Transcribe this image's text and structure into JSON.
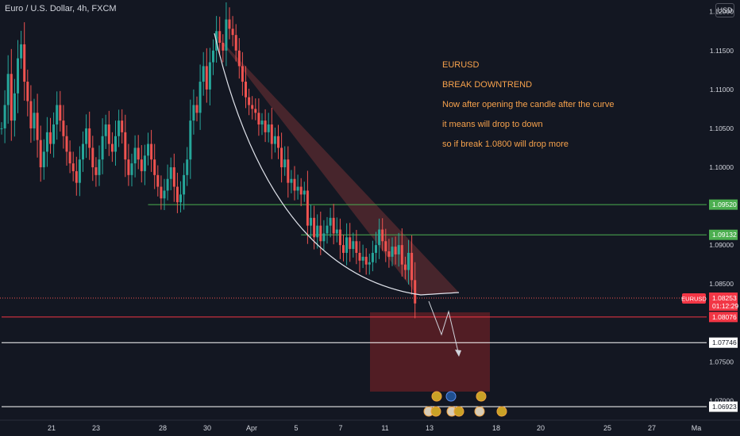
{
  "header": {
    "symbol_title": "Euro / U.S. Dollar, 4h, FXCM",
    "currency_label": "USD"
  },
  "annotation": {
    "lines": [
      "EURUSD",
      "BREAK DOWNTREND",
      "Now after opening the candle after the curve",
      "it means will drop to down",
      "so if break 1.0800 will drop more"
    ],
    "color": "#f7a24c"
  },
  "colors": {
    "background": "#131722",
    "up_candle": "#26a69a",
    "down_candle": "#ef5350",
    "axis_text": "#d1d4dc",
    "green_level": "#4caf50",
    "red_level": "#f23645"
  },
  "chart_data": {
    "type": "candlestick",
    "timeframe": "4h",
    "ylim": [
      1.0675,
      1.1215
    ],
    "y_ticks": [
      "1.12000",
      "1.11500",
      "1.11000",
      "1.10500",
      "1.10000",
      "1.09000",
      "1.08500",
      "1.07500",
      "1.07000"
    ],
    "x_ticks": [
      "21",
      "23",
      "28",
      "30",
      "Apr",
      "5",
      "7",
      "11",
      "13",
      "18",
      "20",
      "25",
      "27",
      "Ma"
    ],
    "series": [
      {
        "name": "EURUSD",
        "last": "1.08253",
        "countdown": "01:12:29"
      }
    ],
    "closes": [
      1.105,
      1.108,
      1.112,
      1.106,
      1.1095,
      1.114,
      1.1158,
      1.111,
      1.1085,
      1.105,
      1.107,
      1.1035,
      1.1,
      1.102,
      1.1045,
      1.103,
      1.1055,
      1.108,
      1.106,
      1.104,
      1.102,
      1.1005,
      1.0995,
      1.098,
      1.101,
      1.103,
      1.105,
      1.1025,
      1.1,
      1.099,
      1.101,
      1.104,
      1.1055,
      1.103,
      1.102,
      1.104,
      1.106,
      1.1045,
      1.101,
      1.099,
      1.1005,
      1.1025,
      1.101,
      1.0995,
      1.1015,
      1.103,
      1.101,
      1.099,
      1.0975,
      1.096,
      1.097,
      1.0985,
      1.1,
      1.0975,
      1.0955,
      1.0965,
      1.099,
      1.101,
      1.106,
      1.108,
      1.107,
      1.111,
      1.113,
      1.11,
      1.1135,
      1.115,
      1.1175,
      1.116,
      1.115,
      1.119,
      1.1178,
      1.117,
      1.115,
      1.113,
      1.111,
      1.109,
      1.108,
      1.1075,
      1.107,
      1.1055,
      1.106,
      1.1045,
      1.1055,
      1.103,
      1.104,
      1.1025,
      1.1,
      1.101,
      1.098,
      1.0985,
      1.097,
      1.0975,
      1.0965,
      1.097,
      1.0925,
      1.0935,
      1.091,
      1.0925,
      1.0905,
      1.0915,
      1.0925,
      1.0935,
      1.0915,
      1.092,
      1.09,
      1.089,
      1.091,
      1.0895,
      1.0905,
      1.089,
      1.088,
      1.0885,
      1.0875,
      1.0878,
      1.089,
      1.09,
      1.092,
      1.0905,
      1.0892,
      1.0885,
      1.0898,
      1.0888,
      1.09,
      1.0875,
      1.0868,
      1.089,
      1.0855,
      1.0825
    ],
    "levels": [
      {
        "label": "1.09520",
        "value": 1.0952,
        "color": "#4caf50",
        "start_index": 45
      },
      {
        "label": "1.09132",
        "value": 1.09132,
        "color": "#4caf50",
        "start_index": 92
      },
      {
        "label": "1.08076",
        "value": 1.08076,
        "color": "#f23645",
        "start_index": 0
      },
      {
        "label": "1.07746",
        "value": 1.07746,
        "color": "#ffffff",
        "start_index": 0
      },
      {
        "label": "1.06923",
        "value": 1.06923,
        "color": "#ffffff",
        "start_index": 0
      }
    ]
  }
}
